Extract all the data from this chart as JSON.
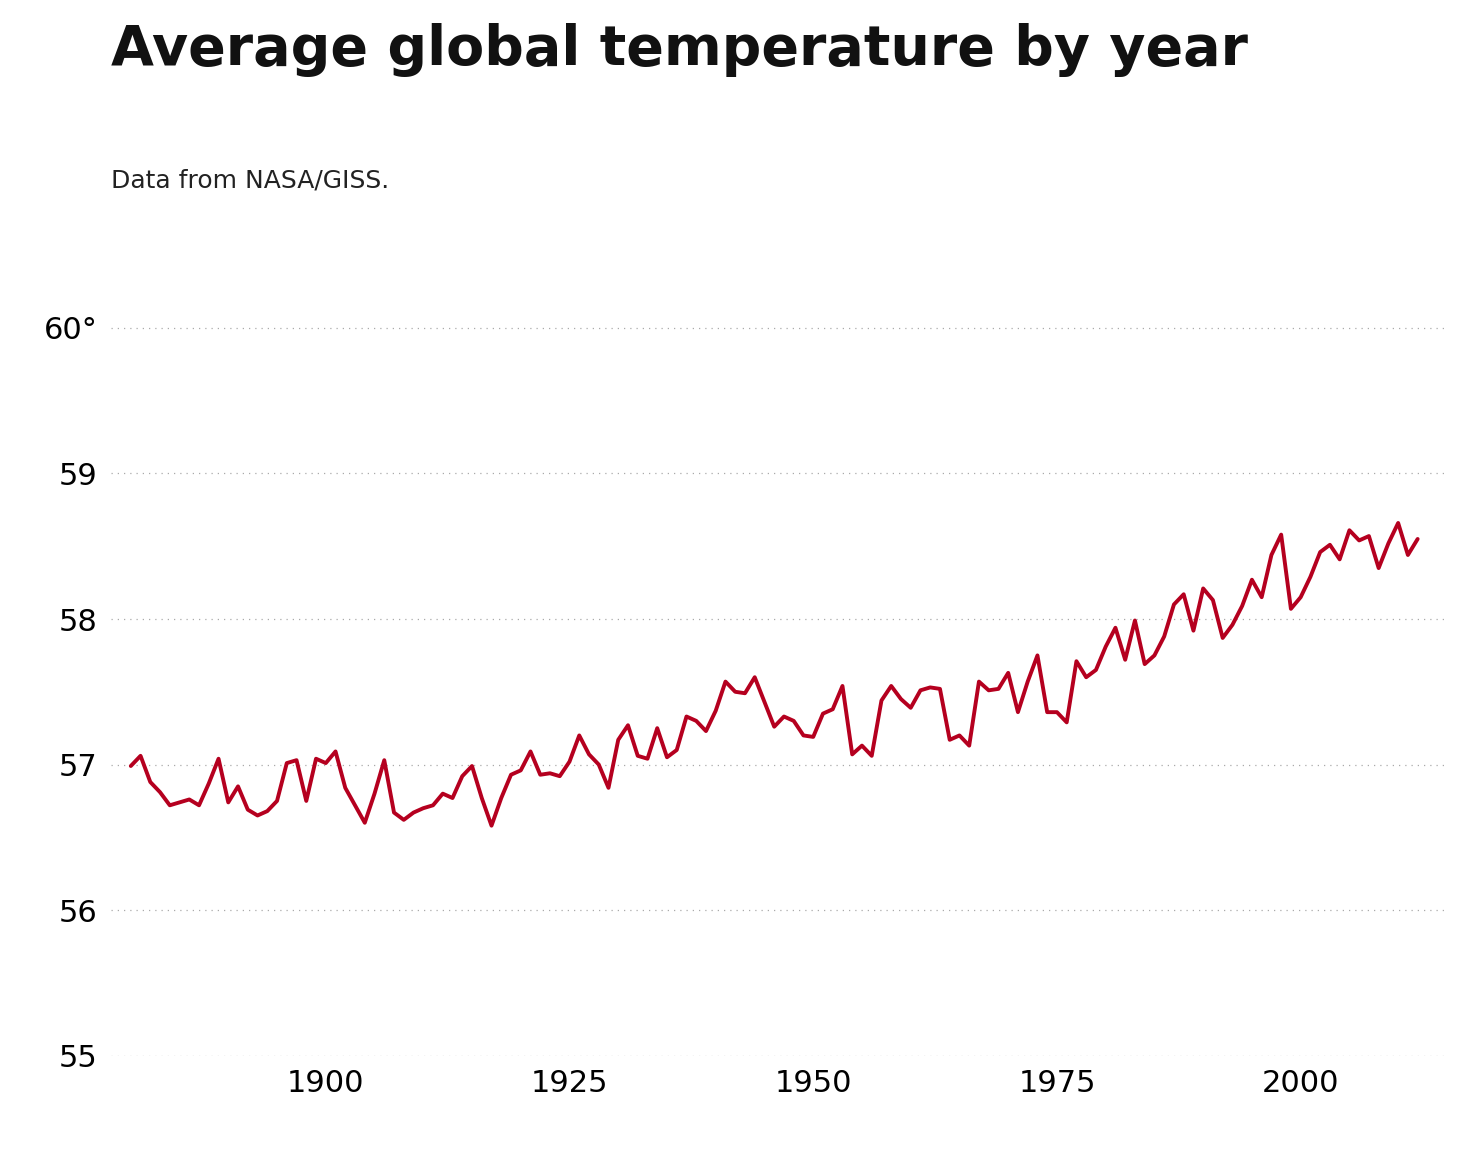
{
  "title": "Average global temperature by year",
  "subtitle": "Data from NASA/GISS.",
  "title_fontsize": 40,
  "subtitle_fontsize": 18,
  "line_color": "#b5001f",
  "line_width": 2.8,
  "background_color": "#ffffff",
  "ylim": [
    55,
    60.5
  ],
  "yticks": [
    55,
    56,
    57,
    58,
    59,
    60
  ],
  "ytick_labels": [
    "55",
    "56",
    "57",
    "58",
    "59",
    "60°"
  ],
  "xticks": [
    1900,
    1925,
    1950,
    1975,
    2000
  ],
  "grid_color": "#aaaaaa",
  "years": [
    1880,
    1881,
    1882,
    1883,
    1884,
    1885,
    1886,
    1887,
    1888,
    1889,
    1890,
    1891,
    1892,
    1893,
    1894,
    1895,
    1896,
    1897,
    1898,
    1899,
    1900,
    1901,
    1902,
    1903,
    1904,
    1905,
    1906,
    1907,
    1908,
    1909,
    1910,
    1911,
    1912,
    1913,
    1914,
    1915,
    1916,
    1917,
    1918,
    1919,
    1920,
    1921,
    1922,
    1923,
    1924,
    1925,
    1926,
    1927,
    1928,
    1929,
    1930,
    1931,
    1932,
    1933,
    1934,
    1935,
    1936,
    1937,
    1938,
    1939,
    1940,
    1941,
    1942,
    1943,
    1944,
    1945,
    1946,
    1947,
    1948,
    1949,
    1950,
    1951,
    1952,
    1953,
    1954,
    1955,
    1956,
    1957,
    1958,
    1959,
    1960,
    1961,
    1962,
    1963,
    1964,
    1965,
    1966,
    1967,
    1968,
    1969,
    1970,
    1971,
    1972,
    1973,
    1974,
    1975,
    1976,
    1977,
    1978,
    1979,
    1980,
    1981,
    1982,
    1983,
    1984,
    1985,
    1986,
    1987,
    1988,
    1989,
    1990,
    1991,
    1992,
    1993,
    1994,
    1995,
    1996,
    1997,
    1998,
    1999,
    2000,
    2001,
    2002,
    2003,
    2004,
    2005,
    2006,
    2007,
    2008,
    2009,
    2010,
    2011,
    2012
  ],
  "temps": [
    56.99,
    57.06,
    56.88,
    56.81,
    56.72,
    56.74,
    56.76,
    56.72,
    56.87,
    57.04,
    56.74,
    56.85,
    56.69,
    56.65,
    56.68,
    56.75,
    57.01,
    57.03,
    56.75,
    57.04,
    57.01,
    57.09,
    56.84,
    56.72,
    56.6,
    56.8,
    57.03,
    56.67,
    56.62,
    56.67,
    56.7,
    56.72,
    56.8,
    56.77,
    56.92,
    56.99,
    56.77,
    56.58,
    56.77,
    56.93,
    56.96,
    57.09,
    56.93,
    56.94,
    56.92,
    57.02,
    57.2,
    57.07,
    57.0,
    56.84,
    57.17,
    57.27,
    57.06,
    57.04,
    57.25,
    57.05,
    57.1,
    57.33,
    57.3,
    57.23,
    57.37,
    57.57,
    57.5,
    57.49,
    57.6,
    57.43,
    57.26,
    57.33,
    57.3,
    57.2,
    57.19,
    57.35,
    57.38,
    57.54,
    57.07,
    57.13,
    57.06,
    57.44,
    57.54,
    57.45,
    57.39,
    57.51,
    57.53,
    57.52,
    57.17,
    57.2,
    57.13,
    57.57,
    57.51,
    57.52,
    57.63,
    57.36,
    57.57,
    57.75,
    57.36,
    57.36,
    57.29,
    57.71,
    57.6,
    57.65,
    57.81,
    57.94,
    57.72,
    57.99,
    57.69,
    57.75,
    57.88,
    58.1,
    58.17,
    57.92,
    58.21,
    58.13,
    57.87,
    57.96,
    58.09,
    58.27,
    58.15,
    58.44,
    58.58,
    58.07,
    58.15,
    58.29,
    58.46,
    58.51,
    58.41,
    58.61,
    58.54,
    58.57,
    58.35,
    58.52,
    58.66,
    58.44,
    58.55
  ],
  "xlim_left": 1878,
  "xlim_right": 2015
}
